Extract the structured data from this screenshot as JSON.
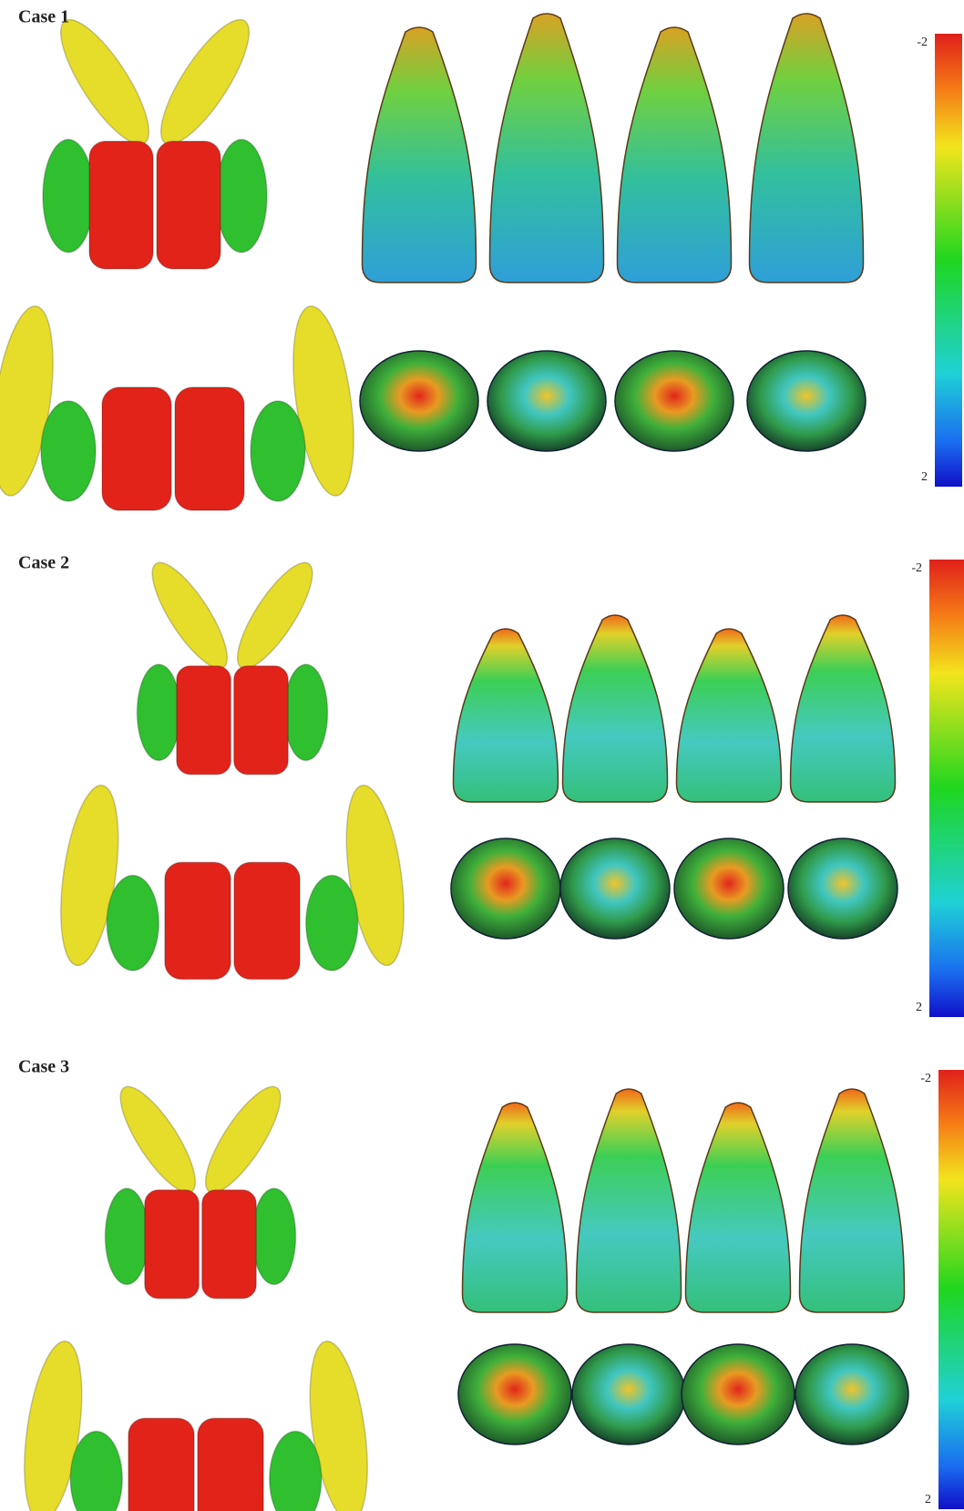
{
  "panels": [
    {
      "label": "Case 1",
      "scale_top": -2,
      "scale_bottom": 2
    },
    {
      "label": "Case 2",
      "scale_top": -2,
      "scale_bottom": 2
    },
    {
      "label": "Case 3",
      "scale_top": -2,
      "scale_bottom": 2
    }
  ]
}
